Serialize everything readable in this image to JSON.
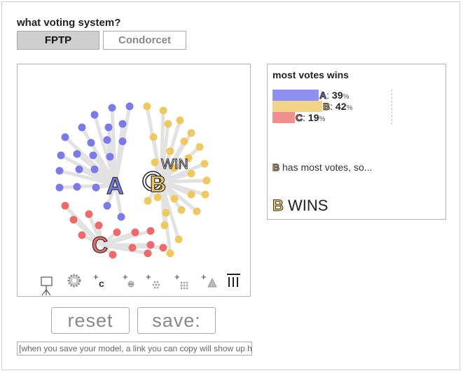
{
  "question": "what voting system?",
  "systems": {
    "fptp": "FPTP",
    "condorcet": "Condorcet",
    "selected": "FPTP"
  },
  "colors": {
    "A": "#7a7ae8",
    "B": "#f0c860",
    "C": "#ee6a6a",
    "A_bar": "#9090f0",
    "B_bar": "#f2d487",
    "C_bar": "#f08f8f"
  },
  "simulation": {
    "win_label": "WIN",
    "candidates": [
      {
        "letter": "A"
      },
      {
        "letter": "B"
      },
      {
        "letter": "C"
      }
    ],
    "tools": [
      {
        "name": "ballot-stand-icon"
      },
      {
        "name": "gear-icon"
      },
      {
        "name": "add-candidate-icon",
        "glyph": "c"
      },
      {
        "name": "add-voter-icon"
      },
      {
        "name": "add-voter-group-small-icon"
      },
      {
        "name": "add-voter-group-large-icon"
      },
      {
        "name": "add-triangle-icon"
      },
      {
        "name": "clear-all-icon"
      }
    ]
  },
  "panel": {
    "title": "most votes wins",
    "results": [
      {
        "letter": "A",
        "value": "39",
        "unit": "%",
        "share": 0.39
      },
      {
        "letter": "B",
        "value": "42",
        "unit": "%",
        "share": 0.42
      },
      {
        "letter": "C",
        "value": "19",
        "unit": "%",
        "share": 0.19
      }
    ],
    "message_letter": "B",
    "message_text": " has most votes, so...",
    "winner_letter": "B",
    "winner_text": " WINS"
  },
  "actions": {
    "reset": "reset",
    "save": "save:",
    "save_link_text": "[when you save your model, a link you can copy will show up here]"
  }
}
